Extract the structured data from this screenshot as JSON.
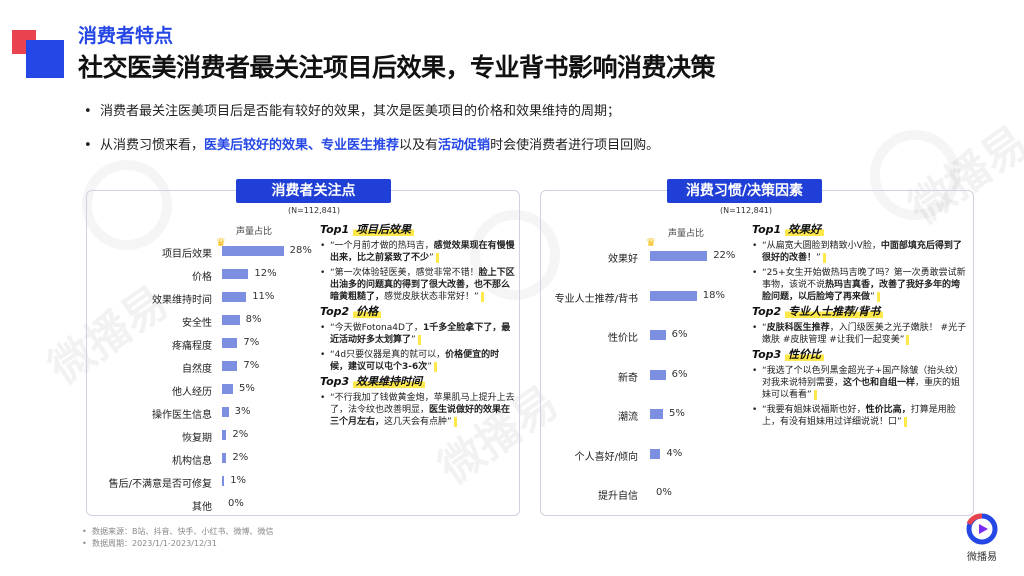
{
  "header": {
    "section_label": "消费者特点",
    "title": "社交医美消费者最关注项目后效果，专业背书影响消费决策"
  },
  "bullets": {
    "b1": "消费者最关注医美项目后是否能有较好的效果，其次是医美项目的价格和效果维持的周期；",
    "b2_pre": "从消费习惯来看，",
    "b2_hl1": "医美后较好的效果、专业医生推荐",
    "b2_mid": "以及有",
    "b2_hl2": "活动促销",
    "b2_post": "时会使消费者进行项目回购。"
  },
  "watermark": {
    "text": "微播易"
  },
  "left_panel": {
    "title": "消费者关注点",
    "sample": "(N=112,841)",
    "col_head": "声量占比",
    "rows": [
      {
        "label": "项目后效果",
        "value": "28%",
        "pct": 28
      },
      {
        "label": "价格",
        "value": "12%",
        "pct": 12
      },
      {
        "label": "效果维持时间",
        "value": "11%",
        "pct": 11
      },
      {
        "label": "安全性",
        "value": "8%",
        "pct": 8
      },
      {
        "label": "疼痛程度",
        "value": "7%",
        "pct": 7
      },
      {
        "label": "自然度",
        "value": "7%",
        "pct": 7
      },
      {
        "label": "他人经历",
        "value": "5%",
        "pct": 5
      },
      {
        "label": "操作医生信息",
        "value": "3%",
        "pct": 3
      },
      {
        "label": "恢复期",
        "value": "2%",
        "pct": 2
      },
      {
        "label": "机构信息",
        "value": "2%",
        "pct": 2
      },
      {
        "label": "售后/不满意是否可修复",
        "value": "1%",
        "pct": 1
      },
      {
        "label": "其他",
        "value": "0%",
        "pct": 0
      }
    ],
    "tops": [
      {
        "prefix": "Top1",
        "name": "项目后效果",
        "quotes": [
          {
            "plain": "“一个月前才做的热玛吉，",
            "bold": "感觉效果现在有慢慢出来，比之前紧致了不少",
            "tail": "”"
          },
          {
            "plain": "“第一次体验轻医美，感觉非常不错！",
            "bold": "脸上下区出油多的问题真的得到了很大改善，也不那么暗黄粗糙了，",
            "tail": "感觉皮肤状态非常好！”"
          }
        ]
      },
      {
        "prefix": "Top2",
        "name": "价格",
        "quotes": [
          {
            "plain": "“今天做Fotona4D了，",
            "bold": "1千多全脸拿下了，最近活动好多太划算了",
            "tail": "”"
          },
          {
            "plain": "“4d只要仪器是真的就可以，",
            "bold": "价格便宜的时候，建议可以屯个3-6次",
            "tail": "”"
          }
        ]
      },
      {
        "prefix": "Top3",
        "name": "效果维持时间",
        "quotes": [
          {
            "plain": "“不行我加了钱做黄金炮，苹果肌马上提升上去了，法令纹也改善明显，",
            "bold": "医生说做好的效果在三个月左右，",
            "tail": "这几天会有点肿”"
          }
        ]
      }
    ]
  },
  "right_panel": {
    "title": "消费习惯/决策因素",
    "sample": "(N=112,841)",
    "col_head": "声量占比",
    "rows": [
      {
        "label": "效果好",
        "value": "22%",
        "pct": 22
      },
      {
        "label": "专业人士推荐/背书",
        "value": "18%",
        "pct": 18
      },
      {
        "label": "性价比",
        "value": "6%",
        "pct": 6
      },
      {
        "label": "新奇",
        "value": "6%",
        "pct": 6
      },
      {
        "label": "潮流",
        "value": "5%",
        "pct": 5
      },
      {
        "label": "个人喜好/倾向",
        "value": "4%",
        "pct": 4
      },
      {
        "label": "提升自信",
        "value": "0%",
        "pct": 0
      }
    ],
    "tops": [
      {
        "prefix": "Top1",
        "name": "效果好",
        "quotes": [
          {
            "plain": "“从扁宽大圆脸到精致小V脸，",
            "bold": "中面部填充后得到了很好的改善！",
            "tail": "”"
          },
          {
            "plain": "“25+女生开始做热玛吉晚了吗？第一次勇敢尝试新事物，该说不说",
            "bold": "热玛吉真香，改善了我好多年的垮脸问题，以后脸垮了再来做",
            "tail": "”"
          }
        ]
      },
      {
        "prefix": "Top2",
        "name": "专业人士推荐/背书",
        "quotes": [
          {
            "plain": "“",
            "bold": "皮肤科医生推荐",
            "tail": "，入门级医美之光子嫩肤！ #光子嫩肤 #皮肤管理 #让我们一起变美”"
          }
        ]
      },
      {
        "prefix": "Top3",
        "name": "性价比",
        "quotes": [
          {
            "plain": "“我选了个以色列黑金超光子+国产除皱（抬头纹）对我来说特别需要，",
            "bold": "这个也和自组一样",
            "tail": "，重庆的姐妹可以看看”"
          },
          {
            "plain": "“我要有姐妹说福斯也好，",
            "bold": "性价比高，",
            "tail": "打算是用脸上，有没有姐妹用过详细说说！口”"
          }
        ]
      }
    ]
  },
  "footer": {
    "source": "数据来源：B站、抖音、快手、小红书、微博、微信",
    "period": "数据周期：2023/1/1-2023/12/31"
  },
  "brand": {
    "name": "微播易"
  },
  "colors": {
    "accent": "#2547e5",
    "bar": "#7d8fe0",
    "highlight": "#ffe94a",
    "deco_red": "#e8434e"
  }
}
